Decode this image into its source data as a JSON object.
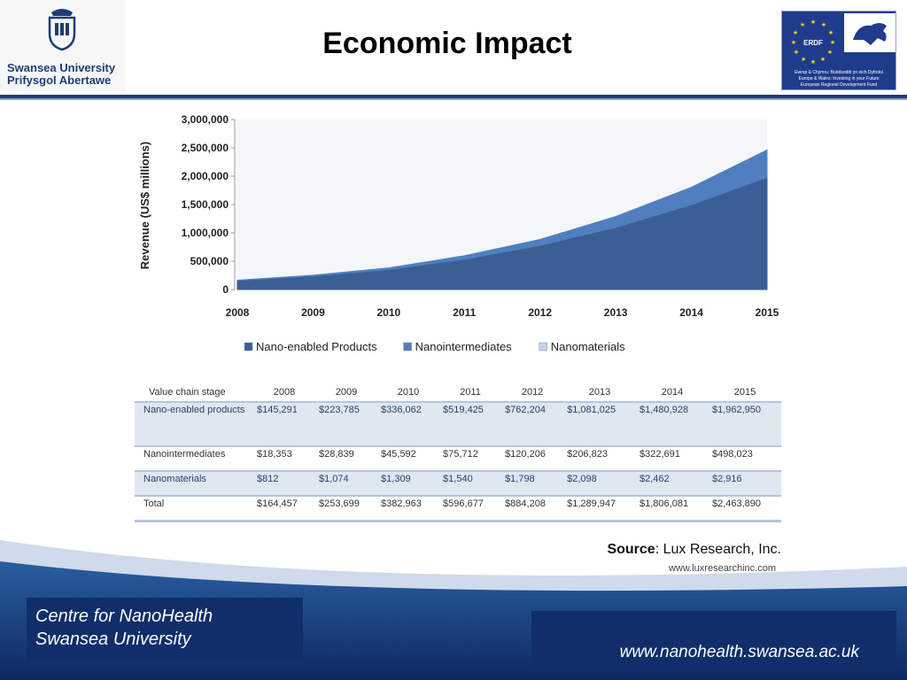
{
  "header": {
    "title": "Economic Impact",
    "university_line1": "Swansea University",
    "university_line2": "Prifysgol Abertawe",
    "erdf_label": "ERDF",
    "erdf_line1": "Ewrop & Chymru: Buddsoddi yn eich Dyfodol",
    "erdf_line2": "Europe & Wales: Investing in your Future",
    "erdf_line3": "European Regional Development Fund"
  },
  "chart_data": {
    "type": "area",
    "title": "",
    "xlabel": "",
    "ylabel": "Revenue (US$ millions)",
    "x": [
      "2008",
      "2009",
      "2010",
      "2011",
      "2012",
      "2013",
      "2014",
      "2015"
    ],
    "ylim": [
      0,
      3000000
    ],
    "yticks": [
      "0",
      "500,000",
      "1,000,000",
      "1,500,000",
      "2,000,000",
      "2,500,000",
      "3,000,000"
    ],
    "stacked": true,
    "legend_position": "bottom",
    "series": [
      {
        "name": "Nano-enabled Products",
        "values": [
          145291,
          223785,
          336062,
          519425,
          762204,
          1081025,
          1480928,
          1962950
        ],
        "color": "#3b5f95"
      },
      {
        "name": "Nanointermediates",
        "values": [
          18353,
          28839,
          45592,
          75712,
          120206,
          206823,
          322691,
          498023
        ],
        "color": "#4f7fc0"
      },
      {
        "name": "Nanomaterials",
        "values": [
          812,
          1074,
          1309,
          1540,
          1798,
          2098,
          2462,
          2916
        ],
        "color": "#c5d3e8"
      }
    ]
  },
  "table": {
    "header_label": "Value chain stage",
    "years": [
      "2008",
      "2009",
      "2010",
      "2011",
      "2012",
      "2013",
      "2014",
      "2015"
    ],
    "rows": [
      {
        "label": "Nano-enabled products",
        "values": [
          "$145,291",
          "$223,785",
          "$336,062",
          "$519,425",
          "$762,204",
          "$1,081,025",
          "$1,480,928",
          "$1,962,950"
        ]
      },
      {
        "label": "Nanointermediates",
        "values": [
          "$18,353",
          "$28,839",
          "$45,592",
          "$75,712",
          "$120,206",
          "$206,823",
          "$322,691",
          "$498,023"
        ]
      },
      {
        "label": "Nanomaterials",
        "values": [
          "$812",
          "$1,074",
          "$1,309",
          "$1,540",
          "$1,798",
          "$2,098",
          "$2,462",
          "$2,916"
        ]
      },
      {
        "label": "Total",
        "values": [
          "$164,457",
          "$253,699",
          "$382,963",
          "$596,677",
          "$884,208",
          "$1,289,947",
          "$1,806,081",
          "$2,463,890"
        ]
      }
    ]
  },
  "source": {
    "label": "Source",
    "text": ": Lux Research, Inc.",
    "url": "www.luxresearchinc.com"
  },
  "footer": {
    "left_line1": "Centre for NanoHealth",
    "left_line2": "Swansea University",
    "right_url": "www.nanohealth.swansea.ac.uk"
  },
  "colors": {
    "navy": "#102e6a",
    "footer_gradient_top": "#1f4b8e",
    "rule": "#1f3a6e"
  }
}
